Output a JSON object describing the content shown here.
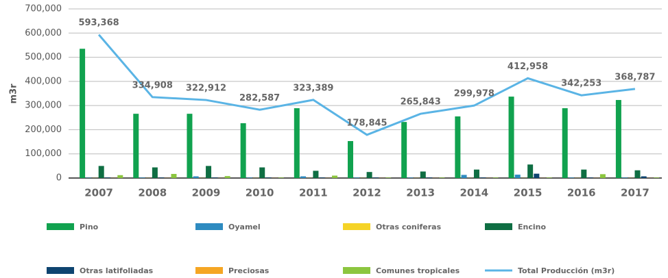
{
  "chart_data": {
    "type": "bar",
    "y_label": "m3r",
    "categories": [
      "2007",
      "2008",
      "2009",
      "2010",
      "2011",
      "2012",
      "2013",
      "2014",
      "2015",
      "2016",
      "2017"
    ],
    "ylim": [
      0,
      700000
    ],
    "yticks": [
      0,
      {
        "value": 100000,
        "label": "100,000"
      },
      {
        "value": 200000,
        "label": "200,000"
      },
      {
        "value": 300000,
        "label": "300,000"
      },
      {
        "value": 400000,
        "label": "400,000"
      },
      {
        "value": 500000,
        "label": "500,000"
      },
      {
        "value": 600000,
        "label": "600,000"
      },
      {
        "value": 700000,
        "label": "700,000"
      }
    ],
    "grid": true,
    "series": [
      {
        "name": "Pino",
        "color": "#11a24f",
        "values": [
          535000,
          266000,
          266000,
          227000,
          289000,
          153000,
          232000,
          255000,
          337000,
          289000,
          323000
        ]
      },
      {
        "name": "Oyamel",
        "color": "#2e8bc0",
        "values": [
          1500,
          2000,
          7000,
          2000,
          7000,
          2000,
          2000,
          13000,
          14000,
          2000,
          2000
        ]
      },
      {
        "name": "Otras coniferas",
        "color": "#f5d327",
        "values": [
          500,
          500,
          500,
          500,
          500,
          500,
          500,
          500,
          500,
          500,
          500
        ]
      },
      {
        "name": "Encino",
        "color": "#0f6e43",
        "values": [
          50000,
          44000,
          50000,
          44000,
          30000,
          25000,
          27000,
          35000,
          56000,
          35000,
          32000
        ]
      },
      {
        "name": "Otras latifoliadas",
        "color": "#0e4470",
        "values": [
          2000,
          2000,
          2000,
          2000,
          2000,
          2000,
          2000,
          2000,
          18000,
          2000,
          7000
        ]
      },
      {
        "name": "Preciosas",
        "color": "#f5a623",
        "values": [
          500,
          500,
          500,
          500,
          500,
          500,
          500,
          500,
          500,
          500,
          500
        ]
      },
      {
        "name": "Comunes tropicales",
        "color": "#8cc63f",
        "values": [
          12000,
          17000,
          8000,
          2000,
          10000,
          2000,
          2000,
          2000,
          2000,
          16000,
          2000
        ]
      },
      {
        "name": "Total Producción (m3r)",
        "color": "#5ab4e5",
        "type": "line",
        "values": [
          593368,
          334908,
          322912,
          282587,
          323389,
          178845,
          265843,
          299978,
          412958,
          342253,
          368787
        ],
        "value_labels": [
          "593,368",
          "334,908",
          "322,912",
          "282,587",
          "323,389",
          "178,845",
          "265,843",
          "299,978",
          "412,958",
          "342,253",
          "368,787"
        ]
      }
    ]
  }
}
